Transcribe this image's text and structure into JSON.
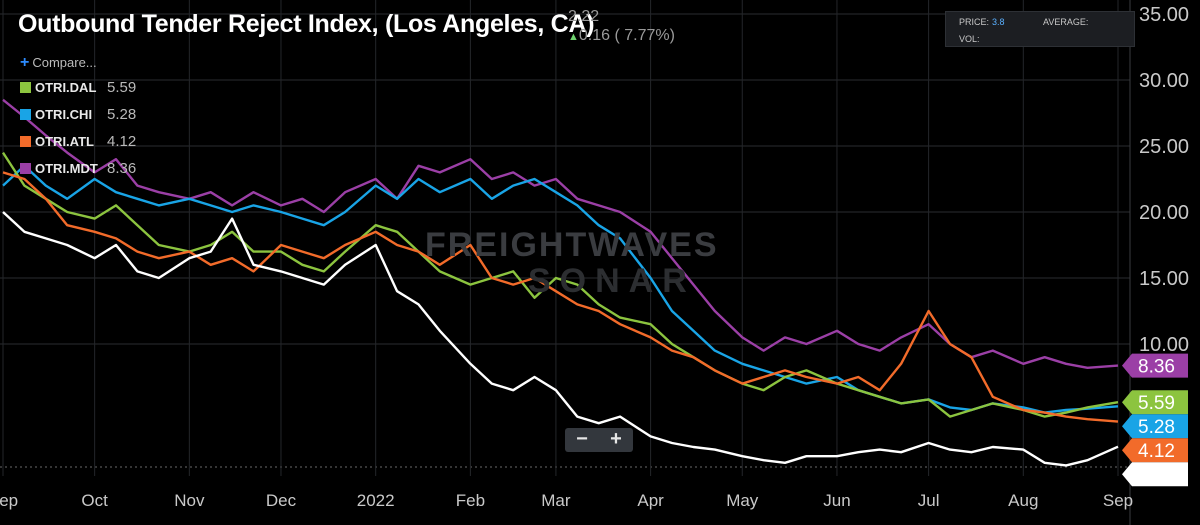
{
  "header": {
    "title": "Outbound Tender Reject Index, (Los Angeles, CA)",
    "last_value": "2.22",
    "change": "0.16 ( 7.77%)"
  },
  "compare_label": "Compare...",
  "legend": [
    {
      "name": "OTRI.DAL",
      "value": "5.59",
      "color": "#8cc43f"
    },
    {
      "name": "OTRI.CHI",
      "value": "5.28",
      "color": "#19a4e6"
    },
    {
      "name": "OTRI.ATL",
      "value": "4.12",
      "color": "#f26b2a"
    },
    {
      "name": "OTRI.MDT",
      "value": "8.36",
      "color": "#9b3fa6"
    }
  ],
  "infobox": {
    "price_label": "PRICE:",
    "price_value": "3.8",
    "average_label": "AVERAGE:",
    "vol_label": "VOL:"
  },
  "watermark": {
    "line1": "FREIGHTWAVES",
    "line2": "SONAR"
  },
  "zoom": {
    "minus": "−",
    "plus": "+"
  },
  "chart_data": {
    "type": "line",
    "grid": true,
    "ylim": [
      0,
      35
    ],
    "y_ticks": [
      "35.00",
      "30.00",
      "25.00",
      "20.00",
      "15.00",
      "10.00"
    ],
    "x_ticks": [
      "Sep",
      "Oct",
      "Nov",
      "Dec",
      "2022",
      "Feb",
      "Mar",
      "Apr",
      "May",
      "Jun",
      "Jul",
      "Aug",
      "Sep"
    ],
    "x_range": [
      "2021-09-01",
      "2022-09-01"
    ],
    "series": [
      {
        "name": "OTRI.MDT",
        "color": "#9b3fa6",
        "last_label": "8.36",
        "points": [
          [
            "2021-09-01",
            28.5
          ],
          [
            "2021-09-08",
            27.2
          ],
          [
            "2021-09-15",
            25.8
          ],
          [
            "2021-09-22",
            24.5
          ],
          [
            "2021-10-01",
            23.0
          ],
          [
            "2021-10-08",
            24.0
          ],
          [
            "2021-10-15",
            22.0
          ],
          [
            "2021-10-22",
            21.5
          ],
          [
            "2021-11-01",
            21.0
          ],
          [
            "2021-11-08",
            21.5
          ],
          [
            "2021-11-15",
            20.5
          ],
          [
            "2021-11-22",
            21.5
          ],
          [
            "2021-12-01",
            20.5
          ],
          [
            "2021-12-08",
            21.0
          ],
          [
            "2021-12-15",
            20.0
          ],
          [
            "2021-12-22",
            21.5
          ],
          [
            "2022-01-01",
            22.5
          ],
          [
            "2022-01-08",
            21.0
          ],
          [
            "2022-01-15",
            23.5
          ],
          [
            "2022-01-22",
            23.0
          ],
          [
            "2022-02-01",
            24.0
          ],
          [
            "2022-02-08",
            22.5
          ],
          [
            "2022-02-15",
            23.0
          ],
          [
            "2022-02-22",
            22.0
          ],
          [
            "2022-03-01",
            22.5
          ],
          [
            "2022-03-08",
            21.0
          ],
          [
            "2022-03-15",
            20.5
          ],
          [
            "2022-03-22",
            20.0
          ],
          [
            "2022-04-01",
            18.5
          ],
          [
            "2022-04-08",
            16.5
          ],
          [
            "2022-04-15",
            14.5
          ],
          [
            "2022-04-22",
            12.5
          ],
          [
            "2022-05-01",
            10.5
          ],
          [
            "2022-05-08",
            9.5
          ],
          [
            "2022-05-15",
            10.5
          ],
          [
            "2022-05-22",
            10.0
          ],
          [
            "2022-06-01",
            11.0
          ],
          [
            "2022-06-08",
            10.0
          ],
          [
            "2022-06-15",
            9.5
          ],
          [
            "2022-06-22",
            10.5
          ],
          [
            "2022-07-01",
            11.5
          ],
          [
            "2022-07-08",
            10.0
          ],
          [
            "2022-07-15",
            9.0
          ],
          [
            "2022-07-22",
            9.5
          ],
          [
            "2022-08-01",
            8.5
          ],
          [
            "2022-08-08",
            9.0
          ],
          [
            "2022-08-15",
            8.5
          ],
          [
            "2022-08-22",
            8.2
          ],
          [
            "2022-09-01",
            8.36
          ]
        ]
      },
      {
        "name": "OTRI.CHI",
        "color": "#19a4e6",
        "last_label": "5.28",
        "points": [
          [
            "2021-09-01",
            22.0
          ],
          [
            "2021-09-08",
            23.5
          ],
          [
            "2021-09-15",
            22.0
          ],
          [
            "2021-09-22",
            21.0
          ],
          [
            "2021-10-01",
            22.5
          ],
          [
            "2021-10-08",
            21.5
          ],
          [
            "2021-10-15",
            21.0
          ],
          [
            "2021-10-22",
            20.5
          ],
          [
            "2021-11-01",
            21.0
          ],
          [
            "2021-11-08",
            20.5
          ],
          [
            "2021-11-15",
            20.0
          ],
          [
            "2021-11-22",
            20.5
          ],
          [
            "2021-12-01",
            20.0
          ],
          [
            "2021-12-08",
            19.5
          ],
          [
            "2021-12-15",
            19.0
          ],
          [
            "2021-12-22",
            20.0
          ],
          [
            "2022-01-01",
            22.0
          ],
          [
            "2022-01-08",
            21.0
          ],
          [
            "2022-01-15",
            22.5
          ],
          [
            "2022-01-22",
            21.5
          ],
          [
            "2022-02-01",
            22.5
          ],
          [
            "2022-02-08",
            21.0
          ],
          [
            "2022-02-15",
            22.0
          ],
          [
            "2022-02-22",
            22.5
          ],
          [
            "2022-03-01",
            21.5
          ],
          [
            "2022-03-08",
            20.5
          ],
          [
            "2022-03-15",
            19.0
          ],
          [
            "2022-03-22",
            18.0
          ],
          [
            "2022-04-01",
            15.0
          ],
          [
            "2022-04-08",
            12.5
          ],
          [
            "2022-04-15",
            11.0
          ],
          [
            "2022-04-22",
            9.5
          ],
          [
            "2022-05-01",
            8.5
          ],
          [
            "2022-05-08",
            8.0
          ],
          [
            "2022-05-15",
            7.5
          ],
          [
            "2022-05-22",
            7.0
          ],
          [
            "2022-06-01",
            7.5
          ],
          [
            "2022-06-08",
            6.5
          ],
          [
            "2022-06-15",
            6.0
          ],
          [
            "2022-06-22",
            5.5
          ],
          [
            "2022-07-01",
            5.8
          ],
          [
            "2022-07-08",
            5.2
          ],
          [
            "2022-07-15",
            5.0
          ],
          [
            "2022-07-22",
            5.5
          ],
          [
            "2022-08-01",
            5.2
          ],
          [
            "2022-08-08",
            4.8
          ],
          [
            "2022-08-15",
            5.0
          ],
          [
            "2022-08-22",
            5.1
          ],
          [
            "2022-09-01",
            5.28
          ]
        ]
      },
      {
        "name": "OTRI.DAL",
        "color": "#8cc43f",
        "last_label": "5.59",
        "points": [
          [
            "2021-09-01",
            24.5
          ],
          [
            "2021-09-08",
            22.0
          ],
          [
            "2021-09-15",
            21.0
          ],
          [
            "2021-09-22",
            20.0
          ],
          [
            "2021-10-01",
            19.5
          ],
          [
            "2021-10-08",
            20.5
          ],
          [
            "2021-10-15",
            19.0
          ],
          [
            "2021-10-22",
            17.5
          ],
          [
            "2021-11-01",
            17.0
          ],
          [
            "2021-11-08",
            17.5
          ],
          [
            "2021-11-15",
            18.5
          ],
          [
            "2021-11-22",
            17.0
          ],
          [
            "2021-12-01",
            17.0
          ],
          [
            "2021-12-08",
            16.0
          ],
          [
            "2021-12-15",
            15.5
          ],
          [
            "2021-12-22",
            17.0
          ],
          [
            "2022-01-01",
            19.0
          ],
          [
            "2022-01-08",
            18.5
          ],
          [
            "2022-01-15",
            17.0
          ],
          [
            "2022-01-22",
            15.5
          ],
          [
            "2022-02-01",
            14.5
          ],
          [
            "2022-02-08",
            15.0
          ],
          [
            "2022-02-15",
            15.5
          ],
          [
            "2022-02-22",
            13.5
          ],
          [
            "2022-03-01",
            15.0
          ],
          [
            "2022-03-08",
            14.5
          ],
          [
            "2022-03-15",
            13.0
          ],
          [
            "2022-03-22",
            12.0
          ],
          [
            "2022-04-01",
            11.5
          ],
          [
            "2022-04-08",
            10.0
          ],
          [
            "2022-04-15",
            9.0
          ],
          [
            "2022-04-22",
            8.0
          ],
          [
            "2022-05-01",
            7.0
          ],
          [
            "2022-05-08",
            6.5
          ],
          [
            "2022-05-15",
            7.5
          ],
          [
            "2022-05-22",
            8.0
          ],
          [
            "2022-06-01",
            7.0
          ],
          [
            "2022-06-08",
            6.5
          ],
          [
            "2022-06-15",
            6.0
          ],
          [
            "2022-06-22",
            5.5
          ],
          [
            "2022-07-01",
            5.8
          ],
          [
            "2022-07-08",
            4.5
          ],
          [
            "2022-07-15",
            5.0
          ],
          [
            "2022-07-22",
            5.5
          ],
          [
            "2022-08-01",
            5.0
          ],
          [
            "2022-08-08",
            4.5
          ],
          [
            "2022-08-15",
            4.8
          ],
          [
            "2022-08-22",
            5.2
          ],
          [
            "2022-09-01",
            5.59
          ]
        ]
      },
      {
        "name": "OTRI.ATL",
        "color": "#f26b2a",
        "last_label": "4.12",
        "points": [
          [
            "2021-09-01",
            23.0
          ],
          [
            "2021-09-08",
            22.5
          ],
          [
            "2021-09-15",
            21.0
          ],
          [
            "2021-09-22",
            19.0
          ],
          [
            "2021-10-01",
            18.5
          ],
          [
            "2021-10-08",
            18.0
          ],
          [
            "2021-10-15",
            17.0
          ],
          [
            "2021-10-22",
            16.5
          ],
          [
            "2021-11-01",
            17.0
          ],
          [
            "2021-11-08",
            16.0
          ],
          [
            "2021-11-15",
            16.5
          ],
          [
            "2021-11-22",
            15.5
          ],
          [
            "2021-12-01",
            17.5
          ],
          [
            "2021-12-08",
            17.0
          ],
          [
            "2021-12-15",
            16.5
          ],
          [
            "2021-12-22",
            17.5
          ],
          [
            "2022-01-01",
            18.5
          ],
          [
            "2022-01-08",
            17.5
          ],
          [
            "2022-01-15",
            17.0
          ],
          [
            "2022-01-22",
            16.0
          ],
          [
            "2022-02-01",
            17.5
          ],
          [
            "2022-02-08",
            15.0
          ],
          [
            "2022-02-15",
            14.5
          ],
          [
            "2022-02-22",
            15.0
          ],
          [
            "2022-03-01",
            14.0
          ],
          [
            "2022-03-08",
            13.0
          ],
          [
            "2022-03-15",
            12.5
          ],
          [
            "2022-03-22",
            11.5
          ],
          [
            "2022-04-01",
            10.5
          ],
          [
            "2022-04-08",
            9.5
          ],
          [
            "2022-04-15",
            9.0
          ],
          [
            "2022-04-22",
            8.0
          ],
          [
            "2022-05-01",
            7.0
          ],
          [
            "2022-05-08",
            7.5
          ],
          [
            "2022-05-15",
            8.0
          ],
          [
            "2022-05-22",
            7.5
          ],
          [
            "2022-06-01",
            7.0
          ],
          [
            "2022-06-08",
            7.5
          ],
          [
            "2022-06-15",
            6.5
          ],
          [
            "2022-06-22",
            8.5
          ],
          [
            "2022-07-01",
            12.5
          ],
          [
            "2022-07-08",
            10.0
          ],
          [
            "2022-07-15",
            9.0
          ],
          [
            "2022-07-22",
            6.0
          ],
          [
            "2022-08-01",
            5.0
          ],
          [
            "2022-08-08",
            4.8
          ],
          [
            "2022-08-15",
            4.5
          ],
          [
            "2022-08-22",
            4.3
          ],
          [
            "2022-09-01",
            4.12
          ]
        ]
      },
      {
        "name": "OTRI (Los Angeles, CA)",
        "color": "#ffffff",
        "last_label": "2.22",
        "points": [
          [
            "2021-09-01",
            20.0
          ],
          [
            "2021-09-08",
            18.5
          ],
          [
            "2021-09-15",
            18.0
          ],
          [
            "2021-09-22",
            17.5
          ],
          [
            "2021-10-01",
            16.5
          ],
          [
            "2021-10-08",
            17.5
          ],
          [
            "2021-10-15",
            15.5
          ],
          [
            "2021-10-22",
            15.0
          ],
          [
            "2021-11-01",
            16.5
          ],
          [
            "2021-11-08",
            17.0
          ],
          [
            "2021-11-15",
            19.5
          ],
          [
            "2021-11-22",
            16.0
          ],
          [
            "2021-12-01",
            15.5
          ],
          [
            "2021-12-08",
            15.0
          ],
          [
            "2021-12-15",
            14.5
          ],
          [
            "2021-12-22",
            16.0
          ],
          [
            "2022-01-01",
            17.5
          ],
          [
            "2022-01-08",
            14.0
          ],
          [
            "2022-01-15",
            13.0
          ],
          [
            "2022-01-22",
            11.0
          ],
          [
            "2022-02-01",
            8.5
          ],
          [
            "2022-02-08",
            7.0
          ],
          [
            "2022-02-15",
            6.5
          ],
          [
            "2022-02-22",
            7.5
          ],
          [
            "2022-03-01",
            6.5
          ],
          [
            "2022-03-08",
            4.5
          ],
          [
            "2022-03-15",
            4.0
          ],
          [
            "2022-03-22",
            4.5
          ],
          [
            "2022-04-01",
            3.0
          ],
          [
            "2022-04-08",
            2.5
          ],
          [
            "2022-04-15",
            2.2
          ],
          [
            "2022-04-22",
            2.0
          ],
          [
            "2022-05-01",
            1.5
          ],
          [
            "2022-05-08",
            1.2
          ],
          [
            "2022-05-15",
            1.0
          ],
          [
            "2022-05-22",
            1.5
          ],
          [
            "2022-06-01",
            1.5
          ],
          [
            "2022-06-08",
            1.8
          ],
          [
            "2022-06-15",
            2.0
          ],
          [
            "2022-06-22",
            1.8
          ],
          [
            "2022-07-01",
            2.5
          ],
          [
            "2022-07-08",
            2.0
          ],
          [
            "2022-07-15",
            1.8
          ],
          [
            "2022-07-22",
            2.2
          ],
          [
            "2022-08-01",
            2.0
          ],
          [
            "2022-08-08",
            1.0
          ],
          [
            "2022-08-15",
            0.8
          ],
          [
            "2022-08-22",
            1.2
          ],
          [
            "2022-09-01",
            2.22
          ]
        ]
      }
    ]
  }
}
